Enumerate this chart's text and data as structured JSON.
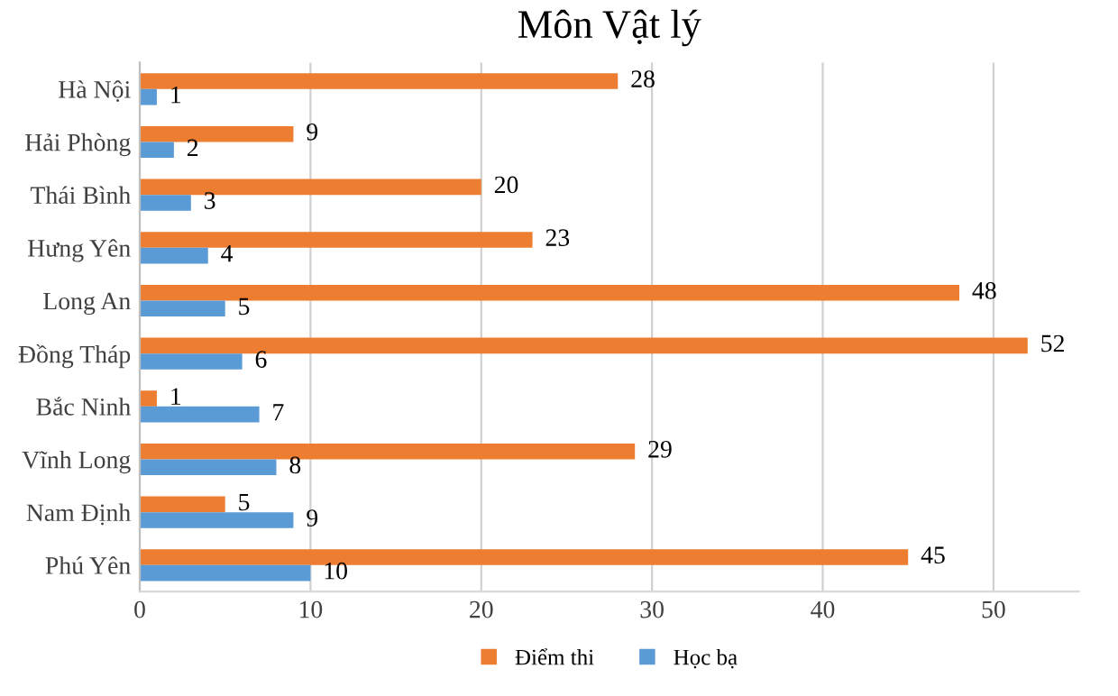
{
  "chart_data": {
    "type": "bar",
    "orientation": "horizontal",
    "title": "Môn Vật lý",
    "categories": [
      "Hà Nội",
      "Hải Phòng",
      "Thái Bình",
      "Hưng Yên",
      "Long An",
      "Đồng Tháp",
      "Bắc Ninh",
      "Vĩnh Long",
      "Nam Định",
      "Phú Yên"
    ],
    "series": [
      {
        "name": "Điểm thi",
        "color": "#ed7d31",
        "values": [
          28,
          9,
          20,
          23,
          48,
          52,
          1,
          29,
          5,
          45
        ]
      },
      {
        "name": "Học bạ",
        "color": "#5b9bd5",
        "values": [
          1,
          2,
          3,
          4,
          5,
          6,
          7,
          8,
          9,
          10
        ]
      }
    ],
    "xlim": [
      0,
      55
    ],
    "xticks": [
      0,
      10,
      20,
      30,
      40,
      50
    ],
    "grid": "x",
    "legend": "bottom",
    "data_labels": true
  }
}
